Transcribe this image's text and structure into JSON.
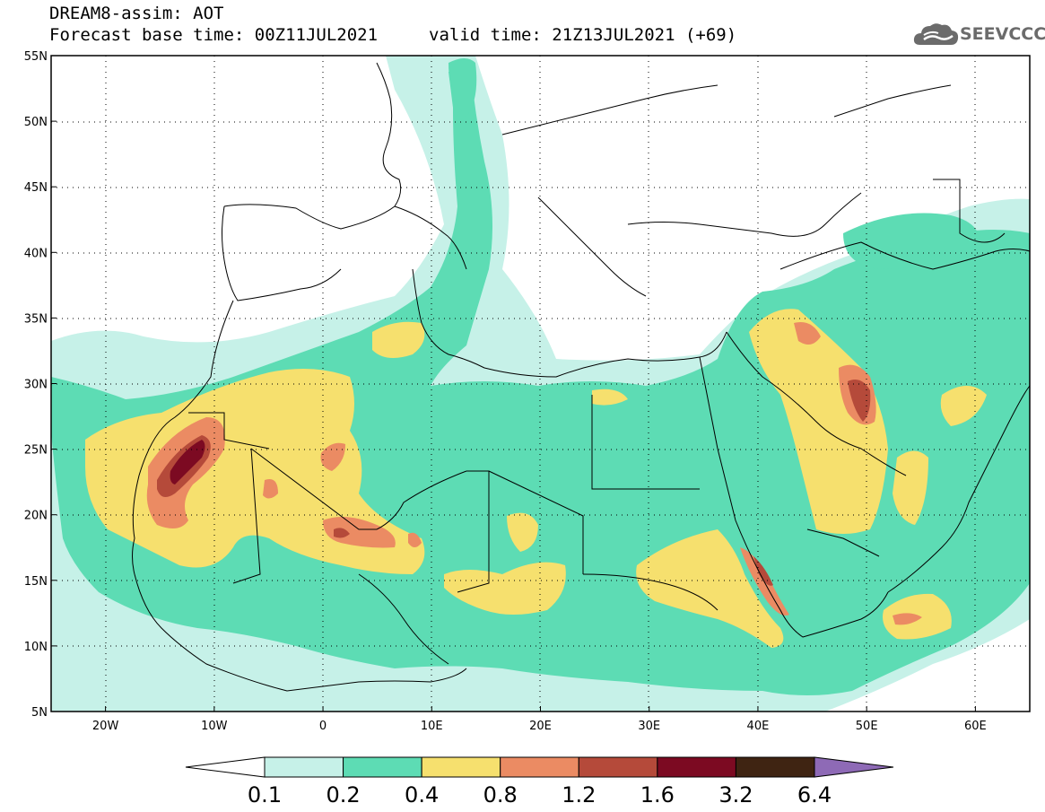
{
  "header": {
    "title_line1": "DREAM8-assim: AOT",
    "base_time": "Forecast base time: 00Z11JUL2021",
    "valid_time": "valid time: 21Z13JUL2021 (+69)",
    "logo_text": "SEEVCCC"
  },
  "map": {
    "lon_range": [
      -25,
      65
    ],
    "lat_range": [
      5,
      55
    ],
    "lat_ticks": [
      "5N",
      "10N",
      "15N",
      "20N",
      "25N",
      "30N",
      "35N",
      "40N",
      "45N",
      "50N",
      "55N"
    ],
    "lon_ticks": [
      "20W",
      "10W",
      "0",
      "10E",
      "20E",
      "30E",
      "40E",
      "50E",
      "60E"
    ]
  },
  "colorbar": {
    "levels": [
      "0.1",
      "0.2",
      "0.4",
      "0.8",
      "1.2",
      "1.6",
      "3.2",
      "6.4"
    ],
    "colors": [
      "#ffffff",
      "#c6f1e8",
      "#5ddcb4",
      "#f6e06e",
      "#eb8b63",
      "#b54a3a",
      "#7c0a22",
      "#3f2412",
      "#8e6ab6"
    ]
  }
}
